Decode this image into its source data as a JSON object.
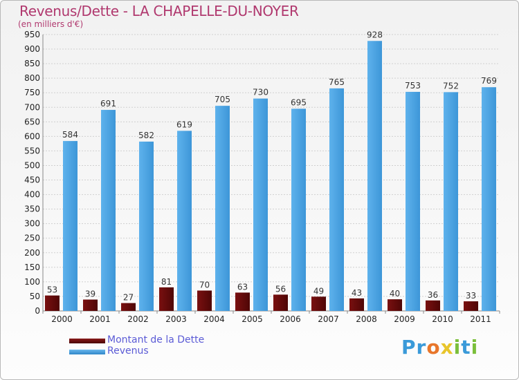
{
  "title": "Revenus/Dette - LA CHAPELLE-DU-NOYER",
  "subtitle": "(en milliers d'€)",
  "legend": {
    "items": [
      {
        "label": "Montant de la Dette",
        "color": "#6b0f0f"
      },
      {
        "label": "Revenus",
        "color": "#4aa3e3"
      }
    ]
  },
  "logo": {
    "text": "Proxiti",
    "letters": [
      "P",
      "r",
      "o",
      "x",
      "i",
      "t",
      "i"
    ],
    "colors": [
      "#3a9ad9",
      "#3a9ad9",
      "#e8762b",
      "#e8c52b",
      "#7bbf3a",
      "#3a9ad9",
      "#7bbf3a"
    ]
  },
  "chart_data": {
    "type": "bar",
    "categories": [
      "2000",
      "2001",
      "2002",
      "2003",
      "2004",
      "2005",
      "2006",
      "2007",
      "2008",
      "2009",
      "2010",
      "2011"
    ],
    "series": [
      {
        "name": "Montant de la Dette",
        "color": "#6b0f0f",
        "values": [
          53,
          39,
          27,
          81,
          70,
          63,
          56,
          49,
          43,
          40,
          36,
          33
        ]
      },
      {
        "name": "Revenus",
        "color": "#4aa3e3",
        "values": [
          584,
          691,
          582,
          619,
          705,
          730,
          695,
          765,
          928,
          753,
          752,
          769
        ]
      }
    ],
    "ylim": [
      0,
      950
    ],
    "yticks": [
      0,
      50,
      100,
      150,
      200,
      250,
      300,
      350,
      400,
      450,
      500,
      550,
      600,
      650,
      700,
      750,
      800,
      850,
      900,
      950
    ],
    "grid": true,
    "legend_position": "bottom-left"
  }
}
